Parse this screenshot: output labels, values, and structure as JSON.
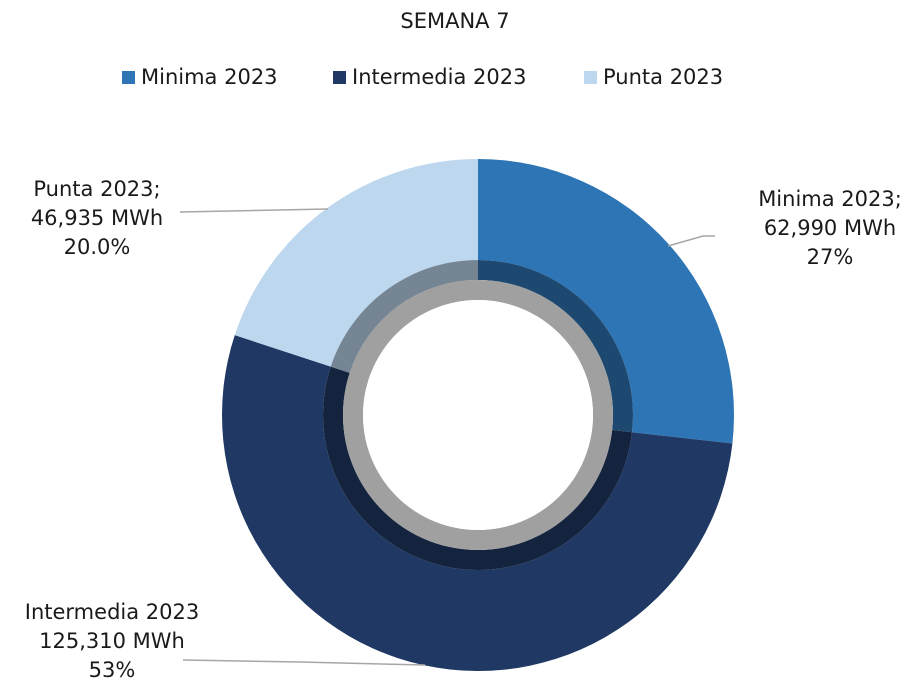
{
  "chart_data": {
    "type": "donut",
    "title": "SEMANA 7",
    "categories": [
      "Minima 2023",
      "Intermedia 2023",
      "Punta 2023"
    ],
    "values": [
      62990,
      125310,
      46935
    ],
    "colors": [
      "#2e75b6",
      "#203864",
      "#bdd7ee"
    ],
    "label_names": [
      "Minima 2023;",
      "Intermedia 2023",
      "Punta 2023;"
    ],
    "value_labels": [
      "62,990 MWh",
      "125,310 MWh",
      "46,935 MWh"
    ],
    "percents": [
      27,
      53,
      20.0
    ],
    "percent_labels": [
      "27%",
      "53%",
      "20.0%"
    ],
    "legend": "top"
  }
}
